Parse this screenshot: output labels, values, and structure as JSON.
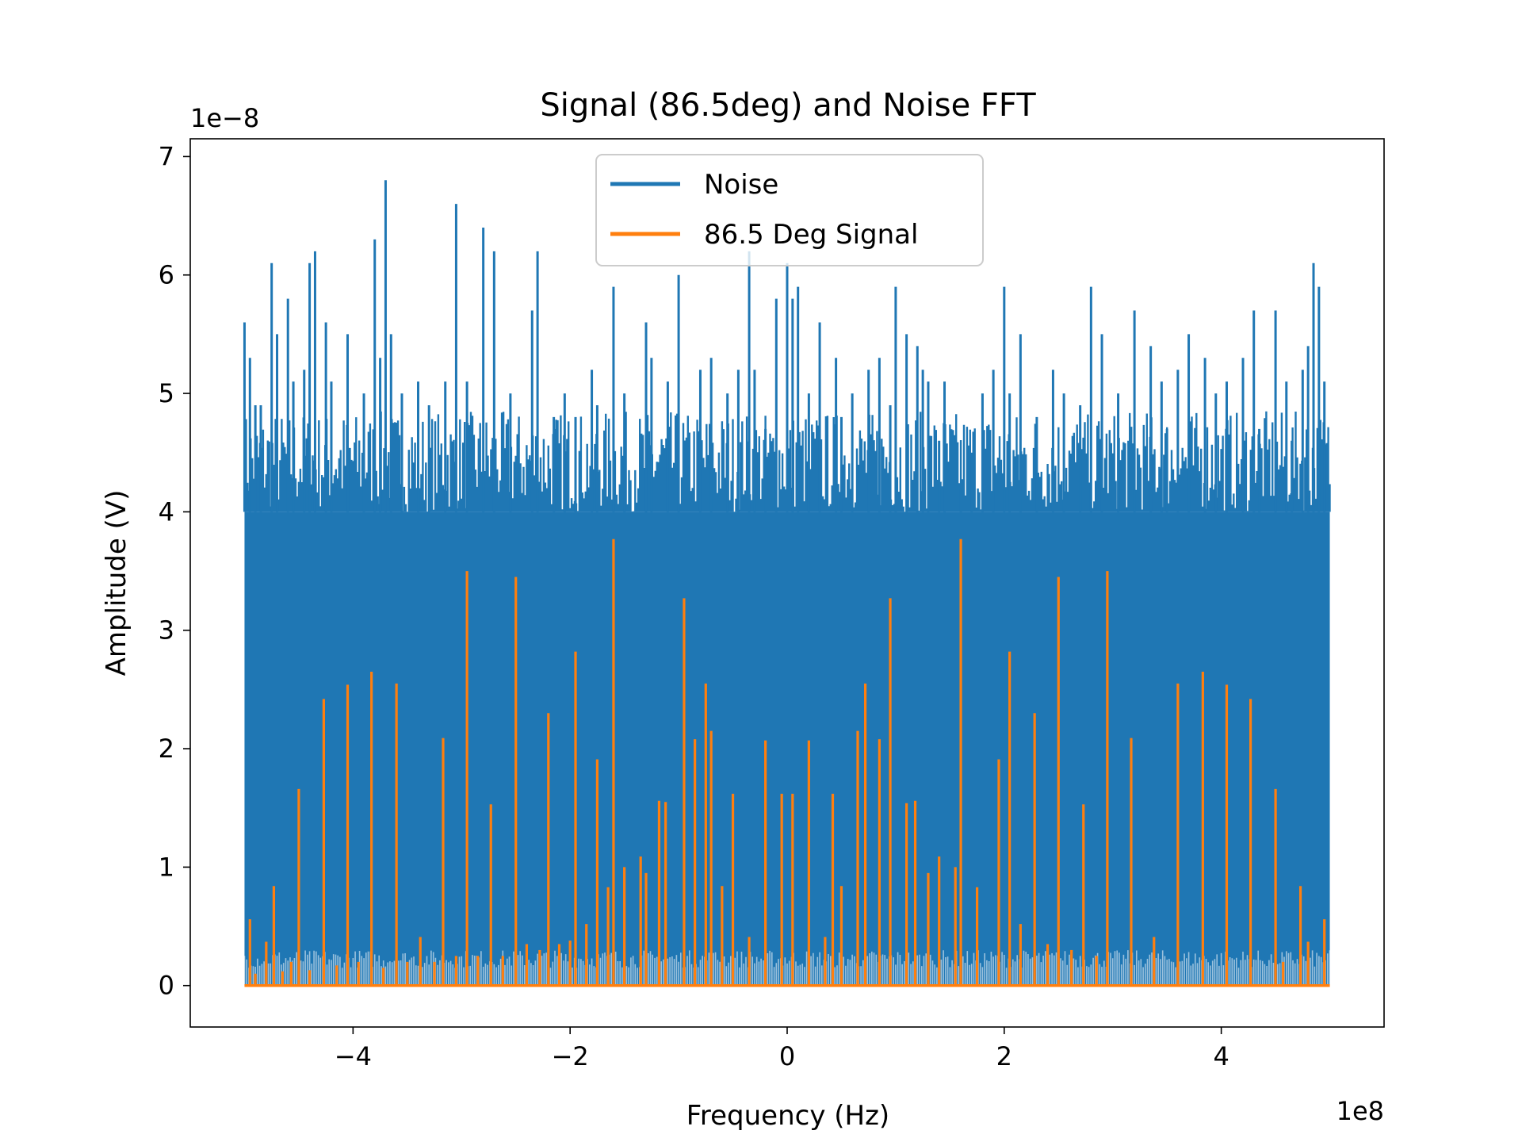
{
  "chart_data": {
    "type": "line",
    "title": "Signal (86.5deg) and Noise FFT",
    "xlabel": "Frequency (Hz)",
    "ylabel": "Amplitude (V)",
    "x_offset_text": "1e8",
    "y_offset_text": "1e−8",
    "xlim": [
      -5.5,
      5.5
    ],
    "ylim": [
      -0.35,
      7.15
    ],
    "x_ticks": [
      -4,
      -2,
      0,
      2,
      4
    ],
    "x_tick_labels": [
      "−4",
      "−2",
      "0",
      "2",
      "4"
    ],
    "y_ticks": [
      0,
      1,
      2,
      3,
      4,
      5,
      6,
      7
    ],
    "y_tick_labels": [
      "0",
      "1",
      "2",
      "3",
      "4",
      "5",
      "6",
      "7"
    ],
    "legend_position": "upper center",
    "series": [
      {
        "name": "Noise",
        "color": "#1f77b4",
        "x_range": [
          -5.0,
          5.0
        ],
        "band_low": 0.0,
        "band_high": 4.0,
        "peaks": [
          [
            -5.0,
            5.6
          ],
          [
            -4.95,
            5.3
          ],
          [
            -4.9,
            4.9
          ],
          [
            -4.85,
            4.9
          ],
          [
            -4.75,
            6.1
          ],
          [
            -4.7,
            5.5
          ],
          [
            -4.6,
            5.8
          ],
          [
            -4.55,
            5.1
          ],
          [
            -4.45,
            5.2
          ],
          [
            -4.4,
            6.1
          ],
          [
            -4.35,
            6.2
          ],
          [
            -4.25,
            5.6
          ],
          [
            -4.2,
            5.1
          ],
          [
            -4.05,
            5.5
          ],
          [
            -3.9,
            5.0
          ],
          [
            -3.8,
            6.3
          ],
          [
            -3.75,
            5.3
          ],
          [
            -3.7,
            6.8
          ],
          [
            -3.65,
            5.5
          ],
          [
            -3.55,
            5.0
          ],
          [
            -3.4,
            5.1
          ],
          [
            -3.3,
            4.9
          ],
          [
            -3.15,
            5.1
          ],
          [
            -3.05,
            6.6
          ],
          [
            -2.95,
            5.1
          ],
          [
            -2.8,
            6.4
          ],
          [
            -2.7,
            6.2
          ],
          [
            -2.55,
            5.0
          ],
          [
            -2.35,
            5.7
          ],
          [
            -2.3,
            6.2
          ],
          [
            -2.15,
            4.8
          ],
          [
            -2.05,
            5.0
          ],
          [
            -1.95,
            4.8
          ],
          [
            -1.8,
            5.2
          ],
          [
            -1.75,
            4.9
          ],
          [
            -1.6,
            5.9
          ],
          [
            -1.5,
            5.0
          ],
          [
            -1.3,
            5.1
          ],
          [
            -1.3,
            5.6
          ],
          [
            -1.25,
            5.3
          ],
          [
            -1.1,
            5.1
          ],
          [
            -1.0,
            6.0
          ],
          [
            -0.8,
            5.2
          ],
          [
            -0.7,
            5.3
          ],
          [
            -0.55,
            5.0
          ],
          [
            -0.45,
            5.2
          ],
          [
            -0.35,
            6.2
          ],
          [
            -0.3,
            5.2
          ],
          [
            -0.2,
            4.7
          ],
          [
            -0.1,
            5.8
          ],
          [
            0.0,
            6.1
          ],
          [
            0.05,
            5.8
          ],
          [
            0.1,
            5.9
          ],
          [
            0.2,
            5.0
          ],
          [
            0.3,
            5.6
          ],
          [
            0.45,
            5.3
          ],
          [
            0.5,
            4.8
          ],
          [
            0.6,
            5.0
          ],
          [
            0.75,
            5.2
          ],
          [
            0.85,
            5.3
          ],
          [
            0.95,
            4.9
          ],
          [
            1.0,
            5.9
          ],
          [
            1.1,
            5.5
          ],
          [
            1.2,
            5.4
          ],
          [
            1.25,
            5.2
          ],
          [
            1.3,
            5.1
          ],
          [
            1.4,
            4.6
          ],
          [
            1.45,
            5.1
          ],
          [
            1.6,
            4.2
          ],
          [
            1.7,
            4.5
          ],
          [
            1.8,
            5.0
          ],
          [
            1.9,
            5.2
          ],
          [
            2.0,
            5.9
          ],
          [
            2.05,
            5.0
          ],
          [
            2.15,
            5.5
          ],
          [
            2.3,
            4.8
          ],
          [
            2.45,
            5.2
          ],
          [
            2.55,
            5.0
          ],
          [
            2.7,
            4.9
          ],
          [
            2.8,
            5.9
          ],
          [
            2.9,
            5.5
          ],
          [
            3.05,
            5.0
          ],
          [
            3.2,
            5.7
          ],
          [
            3.35,
            5.4
          ],
          [
            3.45,
            5.1
          ],
          [
            3.5,
            4.7
          ],
          [
            3.6,
            5.2
          ],
          [
            3.7,
            5.5
          ],
          [
            3.85,
            5.3
          ],
          [
            3.95,
            5.0
          ],
          [
            4.05,
            5.1
          ],
          [
            4.2,
            5.3
          ],
          [
            4.3,
            5.7
          ],
          [
            4.35,
            4.7
          ],
          [
            4.5,
            5.7
          ],
          [
            4.6,
            5.1
          ],
          [
            4.65,
            4.6
          ],
          [
            4.75,
            5.2
          ],
          [
            4.8,
            5.4
          ],
          [
            4.85,
            6.1
          ],
          [
            4.9,
            5.9
          ],
          [
            4.95,
            5.1
          ],
          [
            5.0,
            4.0
          ]
        ]
      },
      {
        "name": "86.5 Deg Signal",
        "color": "#ff7f0e",
        "baseline": 0.0,
        "peaks": [
          [
            -4.95,
            0.56
          ],
          [
            -4.9,
            0.1
          ],
          [
            -4.8,
            0.37
          ],
          [
            -4.73,
            0.84
          ],
          [
            -4.65,
            0.12
          ],
          [
            -4.57,
            0.2
          ],
          [
            -4.5,
            1.66
          ],
          [
            -4.4,
            0.13
          ],
          [
            -4.27,
            2.42
          ],
          [
            -4.15,
            0.17
          ],
          [
            -4.05,
            2.54
          ],
          [
            -3.95,
            0.2
          ],
          [
            -3.83,
            2.65
          ],
          [
            -3.72,
            0.15
          ],
          [
            -3.6,
            2.55
          ],
          [
            -3.5,
            0.2
          ],
          [
            -3.38,
            0.41
          ],
          [
            -3.25,
            0.2
          ],
          [
            -3.17,
            2.09
          ],
          [
            -3.05,
            0.25
          ],
          [
            -2.95,
            3.5
          ],
          [
            -2.85,
            0.25
          ],
          [
            -2.73,
            1.53
          ],
          [
            -2.62,
            0.25
          ],
          [
            -2.5,
            3.45
          ],
          [
            -2.4,
            0.35
          ],
          [
            -2.28,
            0.3
          ],
          [
            -2.2,
            2.3
          ],
          [
            -2.1,
            0.35
          ],
          [
            -2.0,
            0.38
          ],
          [
            -1.95,
            2.82
          ],
          [
            -1.85,
            0.52
          ],
          [
            -1.75,
            1.91
          ],
          [
            -1.65,
            0.83
          ],
          [
            -1.6,
            3.77
          ],
          [
            -1.5,
            1.0
          ],
          [
            -1.35,
            1.09
          ],
          [
            -1.3,
            0.95
          ],
          [
            -1.18,
            1.56
          ],
          [
            -1.12,
            1.55
          ],
          [
            -0.95,
            3.27
          ],
          [
            -0.85,
            2.08
          ],
          [
            -0.75,
            2.55
          ],
          [
            -0.7,
            2.15
          ],
          [
            -0.6,
            0.84
          ],
          [
            -0.5,
            1.62
          ],
          [
            -0.35,
            0.41
          ],
          [
            -0.2,
            2.07
          ],
          [
            -0.05,
            1.62
          ],
          [
            0.05,
            1.62
          ],
          [
            0.2,
            2.07
          ],
          [
            0.35,
            0.41
          ],
          [
            0.42,
            1.62
          ],
          [
            0.5,
            0.84
          ],
          [
            0.65,
            2.15
          ],
          [
            0.72,
            2.55
          ],
          [
            0.85,
            2.08
          ],
          [
            0.95,
            3.27
          ],
          [
            1.1,
            1.54
          ],
          [
            1.18,
            1.56
          ],
          [
            1.3,
            0.95
          ],
          [
            1.4,
            1.09
          ],
          [
            1.55,
            1.0
          ],
          [
            1.6,
            3.77
          ],
          [
            1.75,
            0.83
          ],
          [
            1.95,
            1.91
          ],
          [
            2.05,
            2.82
          ],
          [
            2.15,
            0.52
          ],
          [
            2.28,
            2.3
          ],
          [
            2.4,
            0.35
          ],
          [
            2.5,
            3.45
          ],
          [
            2.62,
            0.3
          ],
          [
            2.73,
            1.53
          ],
          [
            2.85,
            0.25
          ],
          [
            2.95,
            3.5
          ],
          [
            3.17,
            2.09
          ],
          [
            3.38,
            0.41
          ],
          [
            3.6,
            2.55
          ],
          [
            3.83,
            2.65
          ],
          [
            4.05,
            2.54
          ],
          [
            4.27,
            2.42
          ],
          [
            4.5,
            1.66
          ],
          [
            4.57,
            0.2
          ],
          [
            4.73,
            0.84
          ],
          [
            4.8,
            0.37
          ],
          [
            4.95,
            0.56
          ]
        ]
      }
    ]
  }
}
